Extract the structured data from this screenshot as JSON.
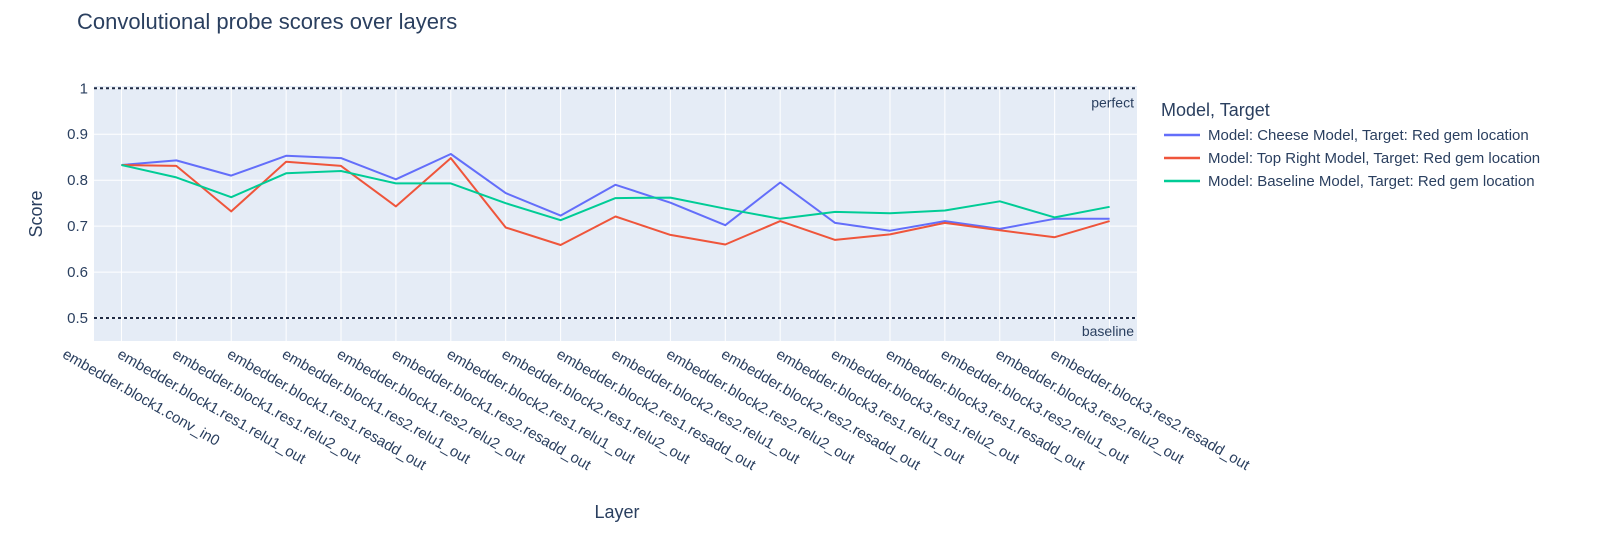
{
  "chart_data": {
    "type": "line",
    "title": "Convolutional probe scores over layers",
    "xlabel": "Layer",
    "ylabel": "Score",
    "ylim": [
      0.45,
      1.005
    ],
    "yticks": [
      0.5,
      0.6,
      0.7,
      0.8,
      0.9,
      1
    ],
    "ytick_labels": [
      "0.5",
      "0.6",
      "0.7",
      "0.8",
      "0.9",
      "1"
    ],
    "grid": true,
    "legend_title": "Model, Target",
    "legend_position": "right",
    "categories": [
      "embedder.block1.conv_in0",
      "embedder.block1.res1.relu1_out",
      "embedder.block1.res1.relu2_out",
      "embedder.block1.res1.resadd_out",
      "embedder.block1.res2.relu1_out",
      "embedder.block1.res2.relu2_out",
      "embedder.block1.res2.resadd_out",
      "embedder.block2.res1.relu1_out",
      "embedder.block2.res1.relu2_out",
      "embedder.block2.res1.resadd_out",
      "embedder.block2.res2.relu1_out",
      "embedder.block2.res2.relu2_out",
      "embedder.block2.res2.resadd_out",
      "embedder.block3.res1.relu1_out",
      "embedder.block3.res1.relu2_out",
      "embedder.block3.res1.resadd_out",
      "embedder.block3.res2.relu1_out",
      "embedder.block3.res2.relu2_out",
      "embedder.block3.res2.resadd_out"
    ],
    "series": [
      {
        "name": "Model: Cheese Model, Target: Red gem location",
        "color": "#636efa",
        "values": [
          0.833,
          0.843,
          0.81,
          0.853,
          0.848,
          0.802,
          0.857,
          0.772,
          0.723,
          0.79,
          0.751,
          0.702,
          0.795,
          0.707,
          0.69,
          0.711,
          0.694,
          0.716,
          0.716
        ]
      },
      {
        "name": "Model: Top Right Model, Target: Red gem location",
        "color": "#ef553b",
        "values": [
          0.833,
          0.831,
          0.732,
          0.84,
          0.831,
          0.743,
          0.848,
          0.697,
          0.659,
          0.721,
          0.681,
          0.66,
          0.711,
          0.67,
          0.682,
          0.707,
          0.691,
          0.676,
          0.711
        ]
      },
      {
        "name": "Model: Baseline Model, Target: Red gem location",
        "color": "#00cc96",
        "values": [
          0.833,
          0.806,
          0.763,
          0.815,
          0.82,
          0.793,
          0.793,
          0.75,
          0.713,
          0.761,
          0.762,
          0.738,
          0.716,
          0.731,
          0.728,
          0.734,
          0.754,
          0.719,
          0.742
        ]
      }
    ],
    "reference_lines": [
      {
        "value": 1,
        "label": "perfect"
      },
      {
        "value": 0.5,
        "label": "baseline"
      }
    ]
  }
}
